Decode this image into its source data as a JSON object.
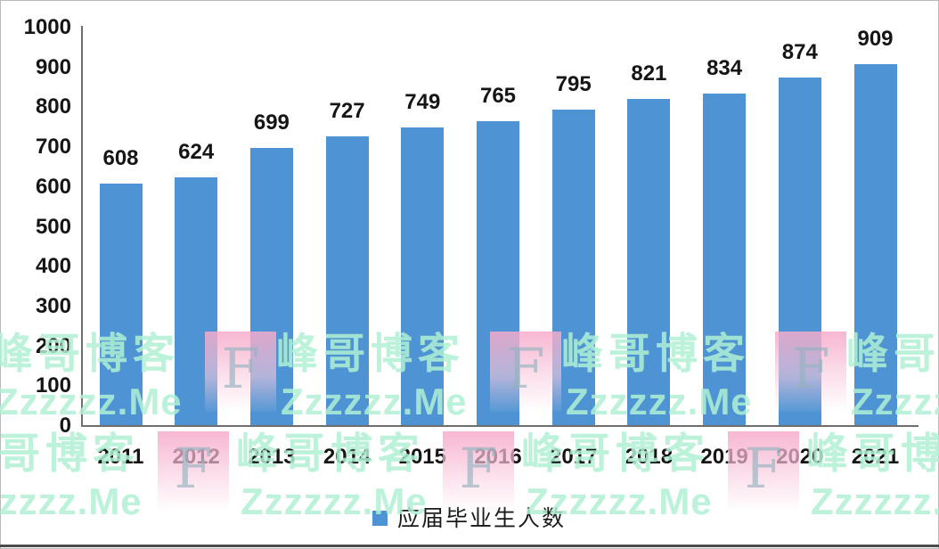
{
  "chart_data": {
    "type": "bar",
    "title": "",
    "xlabel": "",
    "ylabel": "",
    "categories": [
      "2011",
      "2012",
      "2013",
      "2014",
      "2015",
      "2016",
      "2017",
      "2018",
      "2019",
      "2020",
      "2021"
    ],
    "values": [
      608,
      624,
      699,
      727,
      749,
      765,
      795,
      821,
      834,
      874,
      909
    ],
    "series_name": "应届毕业生人数",
    "ylim": [
      0,
      1000
    ],
    "yticks": [
      0,
      100,
      200,
      300,
      400,
      500,
      600,
      700,
      800,
      900,
      1000
    ],
    "grid": false,
    "legend_position": "bottom",
    "bar_color": "#4e93d3",
    "data_labels": true
  },
  "legend": {
    "label": "应届毕业生人数",
    "marker_color": "#4e93d3"
  },
  "watermark": {
    "brand_text": "峰哥博客",
    "domain_text": "Zzzzzz.Me",
    "letter": "F",
    "text_color": "#aff0d2",
    "square_color": "#f6aecb"
  }
}
